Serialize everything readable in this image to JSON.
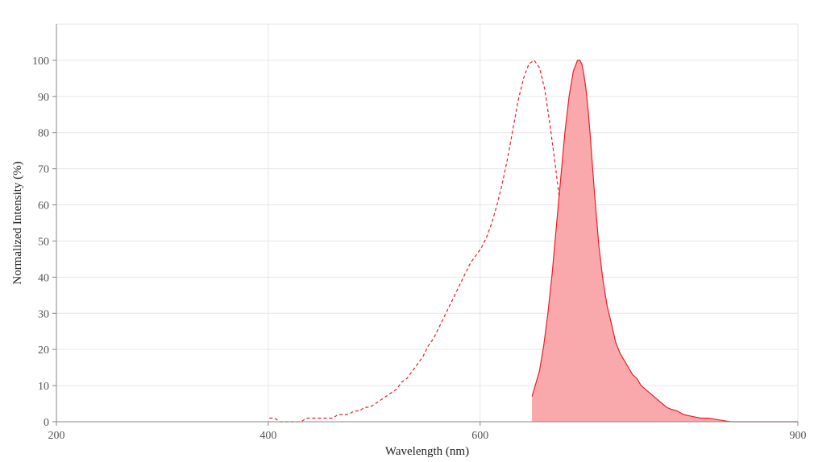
{
  "chart_data": {
    "type": "line",
    "title": "",
    "xlabel": "Wavelength (nm)",
    "ylabel": "Normalized Intensity (%)",
    "xlim": [
      200,
      900
    ],
    "ylim": [
      0,
      110
    ],
    "x_ticks": [
      200,
      400,
      600,
      900
    ],
    "y_ticks": [
      0,
      10,
      20,
      30,
      40,
      50,
      60,
      70,
      80,
      90,
      100
    ],
    "grid": true,
    "legend": "none",
    "series": [
      {
        "style": "dashed-line",
        "color": "#e8202a",
        "x": [
          401,
          406,
          411,
          416,
          421,
          426,
          431,
          436,
          441,
          446,
          451,
          456,
          461,
          466,
          471,
          476,
          481,
          486,
          491,
          496,
          501,
          506,
          511,
          516,
          521,
          526,
          531,
          536,
          541,
          546,
          551,
          556,
          561,
          566,
          571,
          576,
          581,
          586,
          591,
          596,
          601,
          606,
          611,
          616,
          621,
          626,
          631,
          636,
          641,
          646,
          651,
          656,
          661,
          666,
          671,
          676,
          681,
          686,
          691,
          696,
          701
        ],
        "y": [
          1,
          1,
          0,
          0,
          0,
          0,
          0,
          1,
          1,
          1,
          1,
          1,
          1,
          2,
          2,
          2,
          3,
          3,
          4,
          4,
          5,
          6,
          7,
          8,
          9,
          11,
          12,
          14,
          16,
          18,
          21,
          23,
          26,
          29,
          32,
          35,
          38,
          41,
          44,
          46,
          48,
          51,
          55,
          60,
          66,
          73,
          81,
          89,
          95,
          99,
          100,
          98,
          92,
          82,
          71,
          59,
          46,
          34,
          24,
          17,
          14
        ]
      },
      {
        "style": "filled-area",
        "color": "#e8202a",
        "fill": "#f9a9ab",
        "x": [
          649,
          652,
          656,
          660,
          664,
          668,
          672,
          676,
          680,
          684,
          688,
          692,
          694,
          696,
          698,
          700,
          702,
          704,
          708,
          712,
          716,
          720,
          724,
          728,
          732,
          736,
          740,
          744,
          748,
          752,
          756,
          760,
          764,
          768,
          772,
          776,
          780,
          786,
          792,
          800,
          808,
          816,
          826,
          836,
          846,
          856,
          866,
          880,
          900
        ],
        "y": [
          7,
          10,
          14,
          21,
          30,
          41,
          54,
          67,
          80,
          90,
          97,
          100,
          100,
          99,
          96,
          92,
          86,
          79,
          63,
          49,
          39,
          32,
          27,
          22,
          19,
          17,
          15,
          13,
          12,
          10,
          9,
          8,
          7,
          6,
          5,
          4,
          3.5,
          3,
          2,
          1.5,
          1,
          1,
          0.5,
          0,
          0,
          0,
          0,
          0,
          0
        ]
      }
    ]
  }
}
